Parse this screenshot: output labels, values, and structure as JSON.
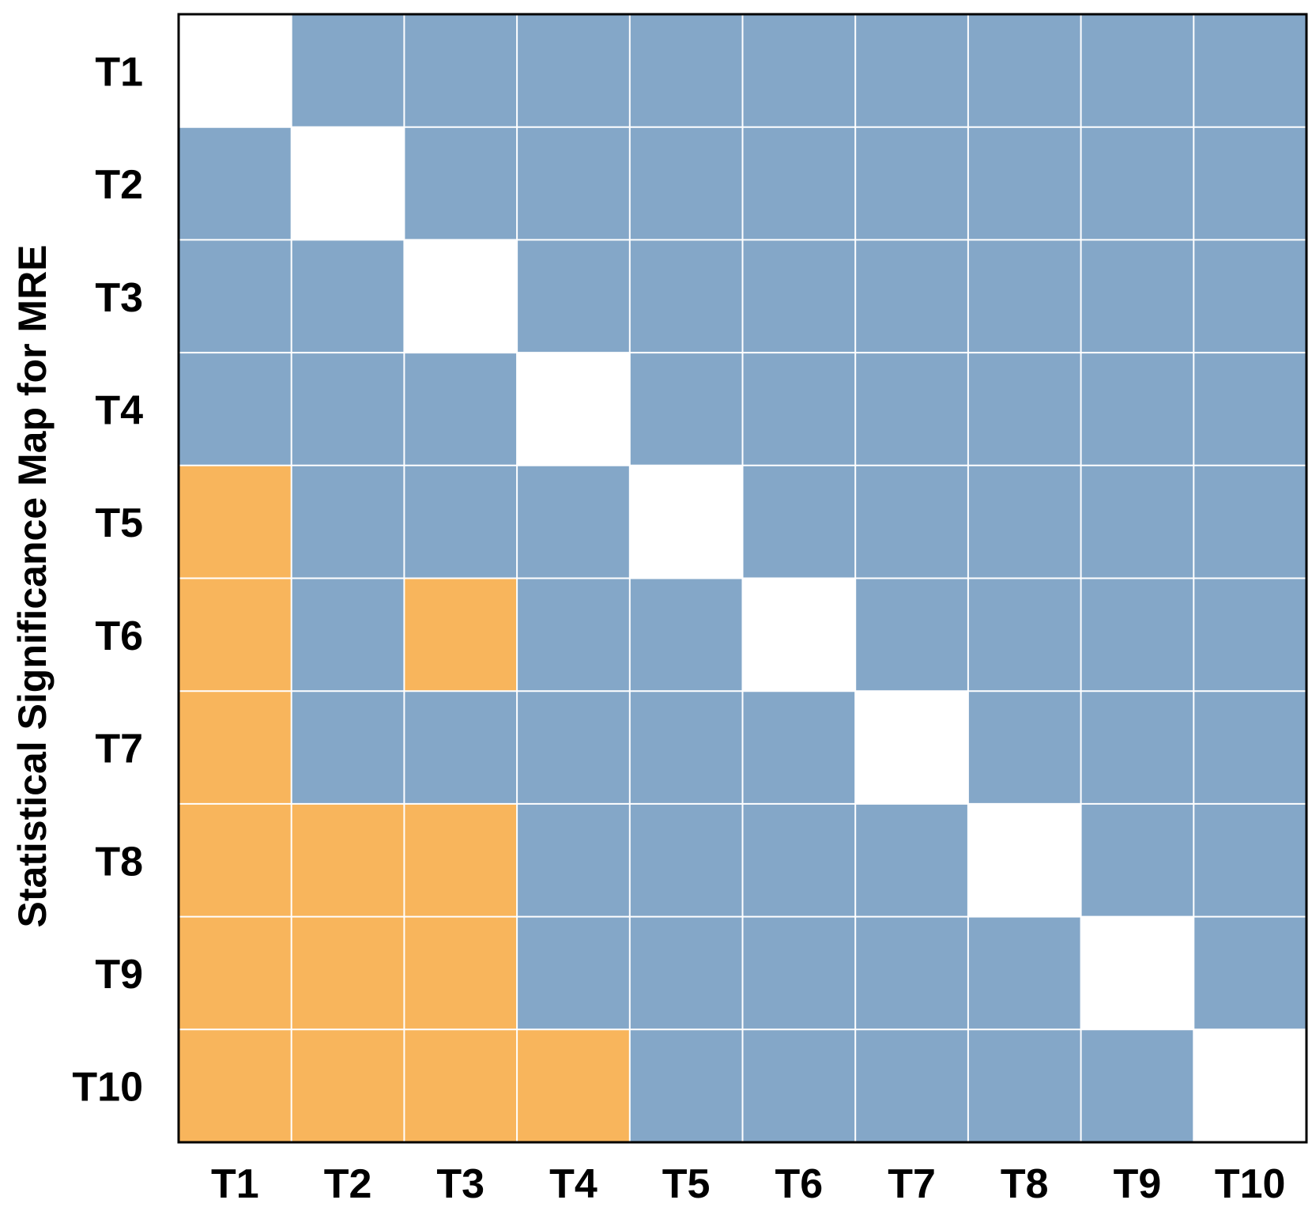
{
  "chart_data": {
    "type": "heatmap",
    "title": "",
    "xlabel": "",
    "ylabel": "Statistical Significance Map for MRE",
    "x_categories": [
      "T1",
      "T2",
      "T3",
      "T4",
      "T5",
      "T6",
      "T7",
      "T8",
      "T9",
      "T10"
    ],
    "y_categories": [
      "T1",
      "T2",
      "T3",
      "T4",
      "T5",
      "T6",
      "T7",
      "T8",
      "T9",
      "T10"
    ],
    "values": [
      [
        -1,
        0,
        0,
        0,
        0,
        0,
        0,
        0,
        0,
        0
      ],
      [
        0,
        -1,
        0,
        0,
        0,
        0,
        0,
        0,
        0,
        0
      ],
      [
        0,
        0,
        -1,
        0,
        0,
        0,
        0,
        0,
        0,
        0
      ],
      [
        0,
        0,
        0,
        -1,
        0,
        0,
        0,
        0,
        0,
        0
      ],
      [
        1,
        0,
        0,
        0,
        -1,
        0,
        0,
        0,
        0,
        0
      ],
      [
        1,
        0,
        1,
        0,
        0,
        -1,
        0,
        0,
        0,
        0
      ],
      [
        1,
        0,
        0,
        0,
        0,
        0,
        -1,
        0,
        0,
        0
      ],
      [
        1,
        1,
        1,
        0,
        0,
        0,
        0,
        -1,
        0,
        0
      ],
      [
        1,
        1,
        1,
        0,
        0,
        0,
        0,
        0,
        -1,
        0
      ],
      [
        1,
        1,
        1,
        1,
        0,
        0,
        0,
        0,
        0,
        -1
      ]
    ],
    "colors": {
      "0": "#84a7c8",
      "1": "#f8b55c",
      "-1": "#ffffff"
    },
    "grid": true,
    "gridline_color": "#ffffff",
    "frame_color": "#000000",
    "legend": "none"
  }
}
